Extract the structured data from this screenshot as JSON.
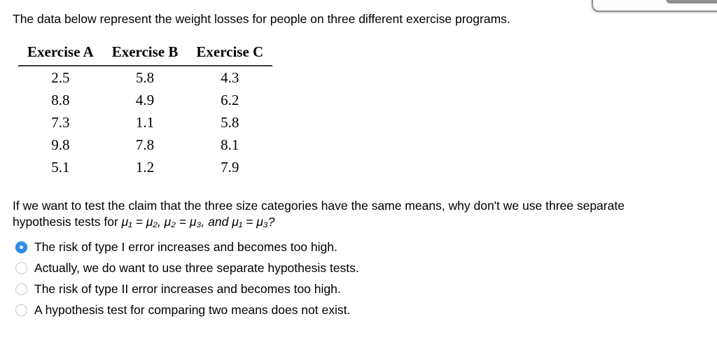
{
  "intro": "The data below represent the weight losses for people on three different exercise programs.",
  "table": {
    "headers": [
      "Exercise A",
      "Exercise B",
      "Exercise C"
    ],
    "rows": [
      [
        "2.5",
        "5.8",
        "4.3"
      ],
      [
        "8.8",
        "4.9",
        "6.2"
      ],
      [
        "7.3",
        "1.1",
        "5.8"
      ],
      [
        "9.8",
        "7.8",
        "8.1"
      ],
      [
        "5.1",
        "1.2",
        "7.9"
      ]
    ]
  },
  "question": {
    "line1": "If we want to test the claim that the three size categories have the same means, why don't we use three separate",
    "line2_prefix": "hypothesis tests for ",
    "line2_math": "μ₁ = μ₂, μ₂ = μ₃, and μ₁ = μ₃?"
  },
  "options": [
    {
      "label": "The risk of type I error increases and becomes too high.",
      "selected": true
    },
    {
      "label": "Actually, we do want to use three separate hypothesis tests.",
      "selected": false
    },
    {
      "label": "The risk of type II error increases and becomes too high.",
      "selected": false
    },
    {
      "label": "A hypothesis test for comparing two means does not exist.",
      "selected": false
    }
  ],
  "colors": {
    "radio_selected": "#2b8ce8",
    "radio_border": "#c8c8c8",
    "table_rule": "#3a3a3a",
    "panel_border": "#8f8f8f",
    "panel_fill": "#fdfdfd",
    "cutoff_button": "#8f8f8f"
  }
}
